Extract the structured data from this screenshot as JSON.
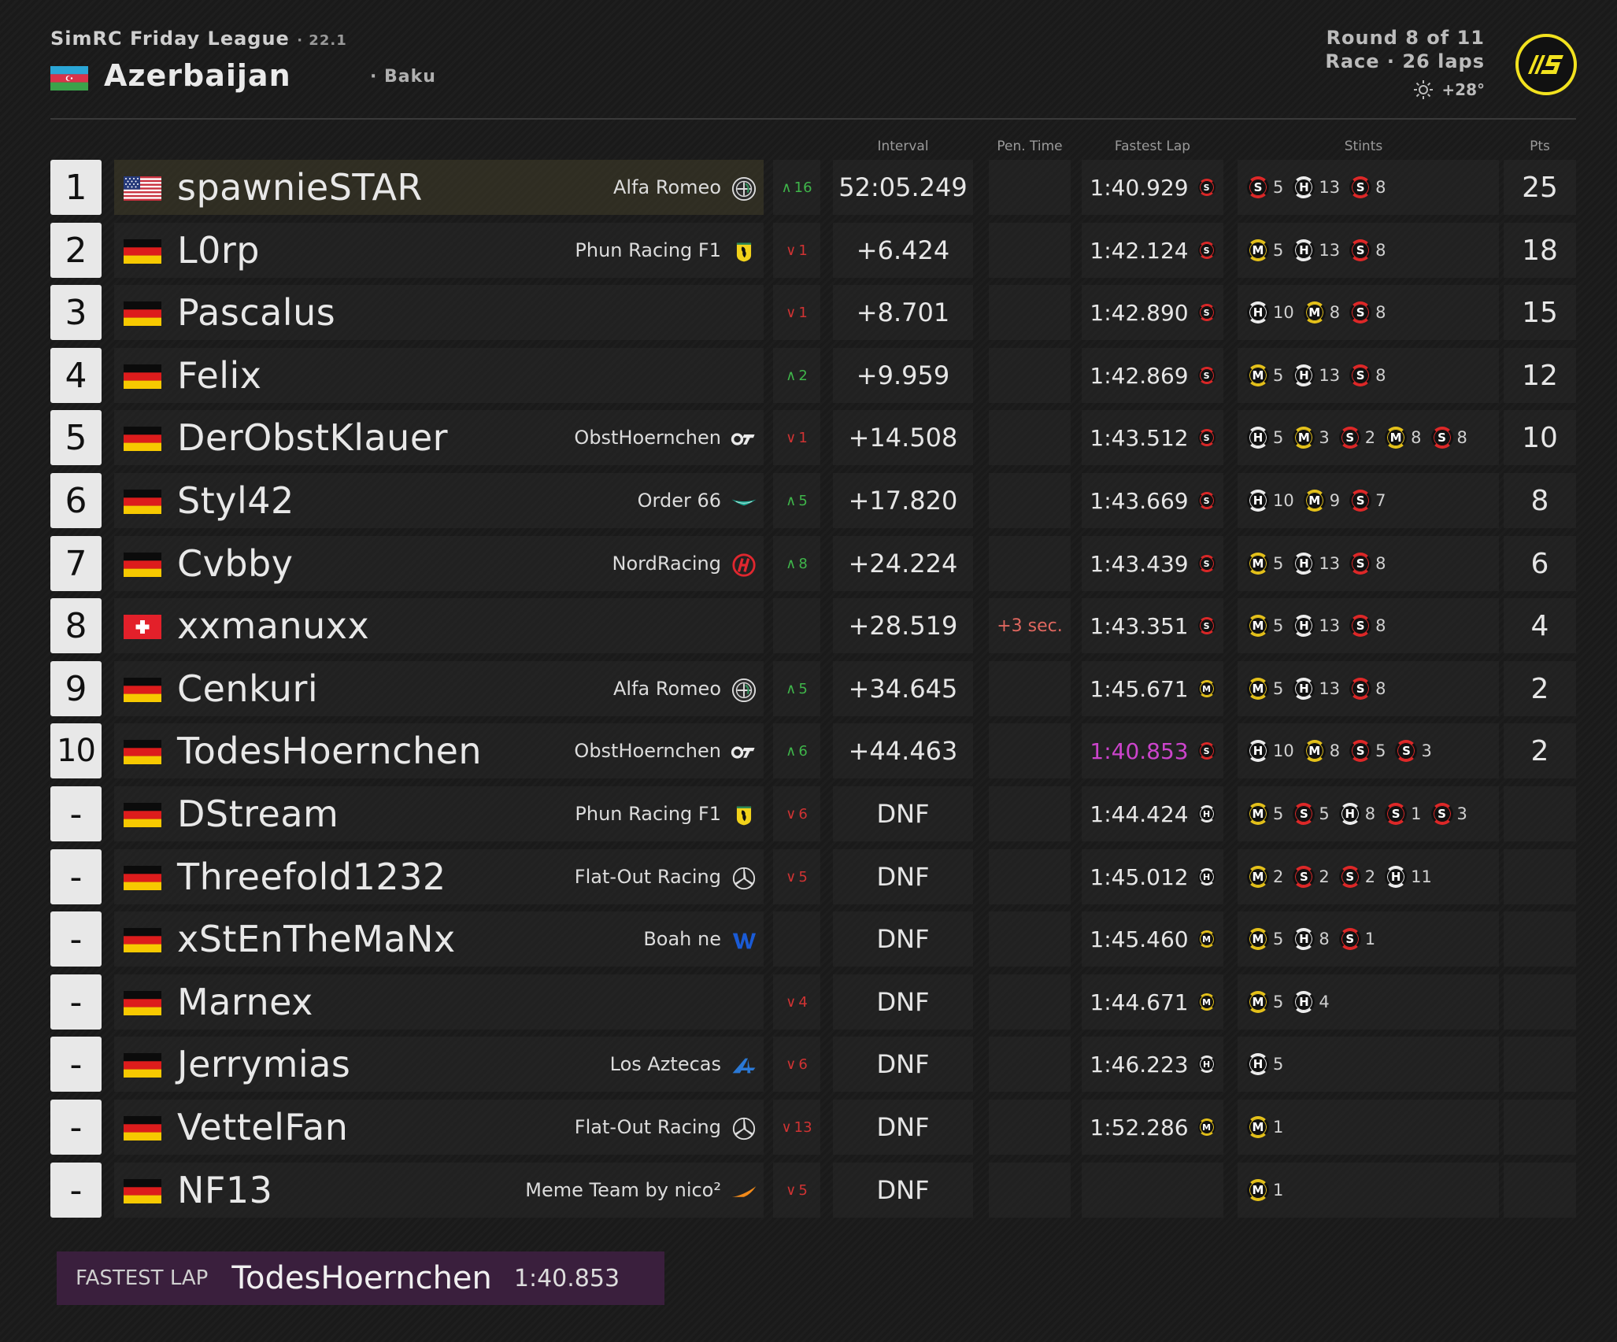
{
  "header": {
    "league": "SimRC Friday League",
    "version": "· 22.1",
    "track": "Azerbaijan",
    "city": "· Baku",
    "round": "Round 8 of 11",
    "race_info": "Race · 26 laps",
    "temperature": "+28°"
  },
  "columns": {
    "interval": "Interval",
    "pen_time": "Pen. Time",
    "fastest_lap": "Fastest Lap",
    "stints": "Stints",
    "pts": "Pts"
  },
  "colors": {
    "soft": "#e02828",
    "medium": "#e6c21a",
    "hard": "#eeeeee",
    "position_gain": "#3fb54a",
    "position_loss": "#d03333",
    "fastest_lap_purple": "#cc44cc",
    "accent_yellow": "#f2e21f"
  },
  "rows": [
    {
      "pos": "1",
      "flag": "us",
      "driver": "spawnieSTAR",
      "team": "Alfa Romeo",
      "team_icon": "alfa-romeo-icon",
      "change": "16",
      "change_dir": "up",
      "interval": "52:05.249",
      "penalty": "",
      "fastest_lap": "1:40.929",
      "fl_tyre": "S",
      "stints": [
        {
          "t": "S",
          "l": "5"
        },
        {
          "t": "H",
          "l": "13"
        },
        {
          "t": "S",
          "l": "8"
        }
      ],
      "pts": "25"
    },
    {
      "pos": "2",
      "flag": "de",
      "driver": "L0rp",
      "team": "Phun Racing F1",
      "team_icon": "ferrari-icon",
      "change": "1",
      "change_dir": "down",
      "interval": "+6.424",
      "penalty": "",
      "fastest_lap": "1:42.124",
      "fl_tyre": "S",
      "stints": [
        {
          "t": "M",
          "l": "5"
        },
        {
          "t": "H",
          "l": "13"
        },
        {
          "t": "S",
          "l": "8"
        }
      ],
      "pts": "18"
    },
    {
      "pos": "3",
      "flag": "de",
      "driver": "Pascalus",
      "team": "",
      "team_icon": "",
      "change": "1",
      "change_dir": "down",
      "interval": "+8.701",
      "penalty": "",
      "fastest_lap": "1:42.890",
      "fl_tyre": "S",
      "stints": [
        {
          "t": "H",
          "l": "10"
        },
        {
          "t": "M",
          "l": "8"
        },
        {
          "t": "S",
          "l": "8"
        }
      ],
      "pts": "15"
    },
    {
      "pos": "4",
      "flag": "de",
      "driver": "Felix",
      "team": "",
      "team_icon": "",
      "change": "2",
      "change_dir": "up",
      "interval": "+9.959",
      "penalty": "",
      "fastest_lap": "1:42.869",
      "fl_tyre": "S",
      "stints": [
        {
          "t": "M",
          "l": "5"
        },
        {
          "t": "H",
          "l": "13"
        },
        {
          "t": "S",
          "l": "8"
        }
      ],
      "pts": "12"
    },
    {
      "pos": "5",
      "flag": "de",
      "driver": "DerObstKlauer",
      "team": "ObstHoernchen",
      "team_icon": "alphatauri-icon",
      "change": "1",
      "change_dir": "down",
      "interval": "+14.508",
      "penalty": "",
      "fastest_lap": "1:43.512",
      "fl_tyre": "S",
      "stints": [
        {
          "t": "H",
          "l": "5"
        },
        {
          "t": "M",
          "l": "3"
        },
        {
          "t": "S",
          "l": "2"
        },
        {
          "t": "M",
          "l": "8"
        },
        {
          "t": "S",
          "l": "8"
        }
      ],
      "pts": "10"
    },
    {
      "pos": "6",
      "flag": "de",
      "driver": "Styl42",
      "team": "Order 66",
      "team_icon": "aston-martin-icon",
      "change": "5",
      "change_dir": "up",
      "interval": "+17.820",
      "penalty": "",
      "fastest_lap": "1:43.669",
      "fl_tyre": "S",
      "stints": [
        {
          "t": "H",
          "l": "10"
        },
        {
          "t": "M",
          "l": "9"
        },
        {
          "t": "S",
          "l": "7"
        }
      ],
      "pts": "8"
    },
    {
      "pos": "7",
      "flag": "de",
      "driver": "Cvbby",
      "team": "NordRacing",
      "team_icon": "haas-icon",
      "change": "8",
      "change_dir": "up",
      "interval": "+24.224",
      "penalty": "",
      "fastest_lap": "1:43.439",
      "fl_tyre": "S",
      "stints": [
        {
          "t": "M",
          "l": "5"
        },
        {
          "t": "H",
          "l": "13"
        },
        {
          "t": "S",
          "l": "8"
        }
      ],
      "pts": "6"
    },
    {
      "pos": "8",
      "flag": "ch",
      "driver": "xxmanuxx",
      "team": "",
      "team_icon": "",
      "change": "",
      "change_dir": "",
      "interval": "+28.519",
      "penalty": "+3 sec.",
      "fastest_lap": "1:43.351",
      "fl_tyre": "S",
      "stints": [
        {
          "t": "M",
          "l": "5"
        },
        {
          "t": "H",
          "l": "13"
        },
        {
          "t": "S",
          "l": "8"
        }
      ],
      "pts": "4"
    },
    {
      "pos": "9",
      "flag": "de",
      "driver": "Cenkuri",
      "team": "Alfa Romeo",
      "team_icon": "alfa-romeo-icon",
      "change": "5",
      "change_dir": "up",
      "interval": "+34.645",
      "penalty": "",
      "fastest_lap": "1:45.671",
      "fl_tyre": "M",
      "stints": [
        {
          "t": "M",
          "l": "5"
        },
        {
          "t": "H",
          "l": "13"
        },
        {
          "t": "S",
          "l": "8"
        }
      ],
      "pts": "2"
    },
    {
      "pos": "10",
      "flag": "de",
      "driver": "TodesHoernchen",
      "team": "ObstHoernchen",
      "team_icon": "alphatauri-icon",
      "change": "6",
      "change_dir": "up",
      "interval": "+44.463",
      "penalty": "",
      "fastest_lap": "1:40.853",
      "fl_tyre": "S",
      "fl_purple": true,
      "stints": [
        {
          "t": "H",
          "l": "10"
        },
        {
          "t": "M",
          "l": "8"
        },
        {
          "t": "S",
          "l": "5"
        },
        {
          "t": "S",
          "l": "3"
        }
      ],
      "pts": "2"
    },
    {
      "pos": "-",
      "flag": "de",
      "driver": "DStream",
      "team": "Phun Racing F1",
      "team_icon": "ferrari-icon",
      "change": "6",
      "change_dir": "down",
      "interval": "DNF",
      "penalty": "",
      "fastest_lap": "1:44.424",
      "fl_tyre": "H",
      "stints": [
        {
          "t": "M",
          "l": "5"
        },
        {
          "t": "S",
          "l": "5"
        },
        {
          "t": "H",
          "l": "8"
        },
        {
          "t": "S",
          "l": "1"
        },
        {
          "t": "S",
          "l": "3"
        }
      ],
      "pts": ""
    },
    {
      "pos": "-",
      "flag": "de",
      "driver": "Threefold1232",
      "team": "Flat-Out Racing",
      "team_icon": "mercedes-icon",
      "change": "5",
      "change_dir": "down",
      "interval": "DNF",
      "penalty": "",
      "fastest_lap": "1:45.012",
      "fl_tyre": "H",
      "stints": [
        {
          "t": "M",
          "l": "2"
        },
        {
          "t": "S",
          "l": "2"
        },
        {
          "t": "S",
          "l": "2"
        },
        {
          "t": "H",
          "l": "11"
        }
      ],
      "pts": ""
    },
    {
      "pos": "-",
      "flag": "de",
      "driver": "xStEnTheMaNx",
      "team": "Boah ne",
      "team_icon": "williams-icon",
      "change": "",
      "change_dir": "",
      "interval": "DNF",
      "penalty": "",
      "fastest_lap": "1:45.460",
      "fl_tyre": "M",
      "stints": [
        {
          "t": "M",
          "l": "5"
        },
        {
          "t": "H",
          "l": "8"
        },
        {
          "t": "S",
          "l": "1"
        }
      ],
      "pts": ""
    },
    {
      "pos": "-",
      "flag": "de",
      "driver": "Marnex",
      "team": "",
      "team_icon": "",
      "change": "4",
      "change_dir": "down",
      "interval": "DNF",
      "penalty": "",
      "fastest_lap": "1:44.671",
      "fl_tyre": "M",
      "stints": [
        {
          "t": "M",
          "l": "5"
        },
        {
          "t": "H",
          "l": "4"
        }
      ],
      "pts": ""
    },
    {
      "pos": "-",
      "flag": "de",
      "driver": "Jerrymias",
      "team": "Los Aztecas",
      "team_icon": "alpine-icon",
      "change": "6",
      "change_dir": "down",
      "interval": "DNF",
      "penalty": "",
      "fastest_lap": "1:46.223",
      "fl_tyre": "H",
      "stints": [
        {
          "t": "H",
          "l": "5"
        }
      ],
      "pts": ""
    },
    {
      "pos": "-",
      "flag": "de",
      "driver": "VettelFan",
      "team": "Flat-Out Racing",
      "team_icon": "mercedes-icon",
      "change": "13",
      "change_dir": "down",
      "interval": "DNF",
      "penalty": "",
      "fastest_lap": "1:52.286",
      "fl_tyre": "M",
      "stints": [
        {
          "t": "M",
          "l": "1"
        }
      ],
      "pts": ""
    },
    {
      "pos": "-",
      "flag": "de",
      "driver": "NF13",
      "team": "Meme Team by nico²",
      "team_icon": "mclaren-icon",
      "change": "5",
      "change_dir": "down",
      "interval": "DNF",
      "penalty": "",
      "fastest_lap": "",
      "fl_tyre": "",
      "stints": [
        {
          "t": "M",
          "l": "1"
        }
      ],
      "pts": ""
    }
  ],
  "fastest_lap_banner": {
    "label": "FASTEST LAP",
    "driver": "TodesHoernchen",
    "time": "1:40.853"
  }
}
